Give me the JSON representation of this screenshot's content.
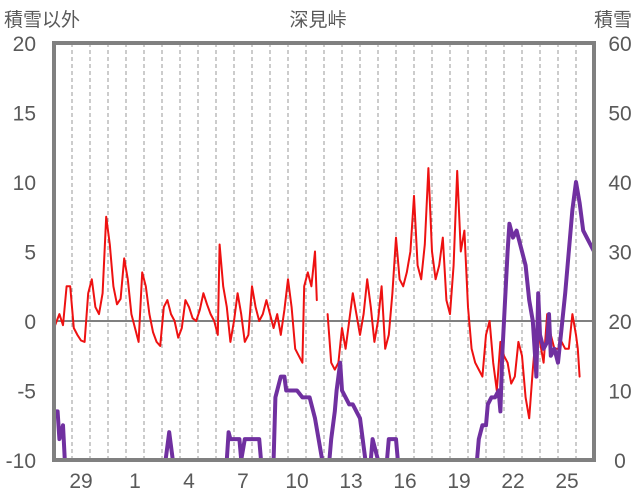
{
  "chart_data": {
    "type": "line",
    "title": "深見峠",
    "left_axis": {
      "label": "積雪以外",
      "ylim": [
        -10,
        20
      ],
      "ticks": [
        -10,
        -5,
        0,
        5,
        10,
        15,
        20
      ]
    },
    "right_axis": {
      "label": "積雪",
      "ylim": [
        0,
        60
      ],
      "ticks": [
        0,
        10,
        20,
        30,
        40,
        50,
        60
      ]
    },
    "x_ticks": [
      "29",
      "1",
      "4",
      "7",
      "10",
      "13",
      "16",
      "19",
      "22",
      "25"
    ],
    "x_day_range": [
      0,
      30
    ],
    "x_tick_days": [
      1.5,
      4.5,
      7.5,
      10.5,
      13.5,
      16.5,
      19.5,
      22.5,
      25.5,
      28.5
    ],
    "grid": "vertical dashed daily, solid zero line",
    "series": [
      {
        "axis": "left",
        "color": "#ee1111",
        "points": [
          [
            0.0,
            -0.5
          ],
          [
            0.3,
            0.5
          ],
          [
            0.5,
            -0.3
          ],
          [
            0.7,
            2.5
          ],
          [
            0.9,
            2.5
          ],
          [
            1.1,
            -0.5
          ],
          [
            1.3,
            -1.0
          ],
          [
            1.5,
            -1.4
          ],
          [
            1.7,
            -1.5
          ],
          [
            1.9,
            2.0
          ],
          [
            2.1,
            3.0
          ],
          [
            2.3,
            1.0
          ],
          [
            2.5,
            0.5
          ],
          [
            2.7,
            2.0
          ],
          [
            2.9,
            7.5
          ],
          [
            3.1,
            5.5
          ],
          [
            3.3,
            2.5
          ],
          [
            3.5,
            1.2
          ],
          [
            3.7,
            1.6
          ],
          [
            3.9,
            4.5
          ],
          [
            4.1,
            3.0
          ],
          [
            4.3,
            0.5
          ],
          [
            4.5,
            -0.5
          ],
          [
            4.7,
            -1.5
          ],
          [
            4.9,
            3.5
          ],
          [
            5.1,
            2.5
          ],
          [
            5.3,
            0.5
          ],
          [
            5.5,
            -0.8
          ],
          [
            5.7,
            -1.5
          ],
          [
            5.9,
            -1.8
          ],
          [
            6.1,
            1.0
          ],
          [
            6.3,
            1.5
          ],
          [
            6.5,
            0.5
          ],
          [
            6.7,
            0.0
          ],
          [
            6.9,
            -1.2
          ],
          [
            7.1,
            -0.5
          ],
          [
            7.3,
            1.5
          ],
          [
            7.5,
            1.0
          ],
          [
            7.7,
            0.2
          ],
          [
            7.9,
            0.0
          ],
          [
            8.1,
            0.8
          ],
          [
            8.3,
            2.0
          ],
          [
            8.5,
            1.2
          ],
          [
            8.7,
            0.5
          ],
          [
            8.9,
            0.0
          ],
          [
            9.1,
            -1.0
          ],
          [
            9.2,
            5.5
          ],
          [
            9.4,
            2.5
          ],
          [
            9.6,
            1.0
          ],
          [
            9.8,
            -1.5
          ],
          [
            10.0,
            0.0
          ],
          [
            10.2,
            2.0
          ],
          [
            10.4,
            0.5
          ],
          [
            10.6,
            -1.5
          ],
          [
            10.8,
            -1.0
          ],
          [
            11.0,
            2.5
          ],
          [
            11.2,
            1.0
          ],
          [
            11.4,
            0.0
          ],
          [
            11.6,
            0.5
          ],
          [
            11.8,
            1.5
          ],
          [
            12.0,
            0.5
          ],
          [
            12.2,
            -0.5
          ],
          [
            12.4,
            0.5
          ],
          [
            12.6,
            -1.0
          ],
          [
            12.8,
            0.8
          ],
          [
            13.0,
            3.0
          ],
          [
            13.2,
            1.0
          ],
          [
            13.4,
            -2.0
          ],
          [
            13.6,
            -2.5
          ],
          [
            13.8,
            -3.0
          ],
          [
            13.9,
            2.5
          ],
          [
            14.1,
            3.5
          ],
          [
            14.3,
            2.5
          ],
          [
            14.5,
            5.0
          ],
          [
            14.6,
            1.5
          ]
        ]
      },
      {
        "axis": "left",
        "color": "#ee1111",
        "points": [
          [
            15.2,
            0.5
          ],
          [
            15.4,
            -3.0
          ],
          [
            15.6,
            -3.5
          ],
          [
            15.8,
            -3.0
          ],
          [
            16.0,
            -0.5
          ],
          [
            16.2,
            -2.0
          ],
          [
            16.4,
            0.0
          ],
          [
            16.6,
            2.0
          ],
          [
            16.8,
            0.5
          ],
          [
            17.0,
            -1.0
          ],
          [
            17.2,
            0.5
          ],
          [
            17.4,
            3.0
          ],
          [
            17.6,
            1.0
          ],
          [
            17.8,
            -1.5
          ],
          [
            18.0,
            0.0
          ],
          [
            18.2,
            2.5
          ],
          [
            18.4,
            -2.0
          ],
          [
            18.6,
            -1.0
          ],
          [
            18.8,
            2.0
          ],
          [
            19.0,
            6.0
          ],
          [
            19.2,
            3.0
          ],
          [
            19.4,
            2.5
          ],
          [
            19.6,
            3.5
          ],
          [
            19.8,
            5.0
          ],
          [
            20.0,
            9.0
          ],
          [
            20.2,
            4.0
          ],
          [
            20.4,
            3.0
          ],
          [
            20.6,
            5.5
          ],
          [
            20.8,
            11.0
          ],
          [
            21.0,
            5.0
          ],
          [
            21.2,
            3.0
          ],
          [
            21.4,
            4.0
          ],
          [
            21.6,
            6.0
          ],
          [
            21.8,
            1.5
          ],
          [
            22.0,
            0.5
          ],
          [
            22.2,
            4.0
          ],
          [
            22.4,
            10.8
          ],
          [
            22.6,
            5.0
          ],
          [
            22.8,
            6.5
          ],
          [
            23.0,
            1.0
          ],
          [
            23.2,
            -2.0
          ],
          [
            23.4,
            -3.0
          ],
          [
            23.6,
            -3.5
          ],
          [
            23.8,
            -4.0
          ],
          [
            24.0,
            -1.0
          ],
          [
            24.2,
            0.0
          ],
          [
            24.4,
            -3.0
          ],
          [
            24.6,
            -5.0
          ],
          [
            24.8,
            -1.5
          ],
          [
            25.0,
            -2.5
          ],
          [
            25.2,
            -3.0
          ],
          [
            25.4,
            -4.5
          ],
          [
            25.6,
            -4.0
          ],
          [
            25.8,
            -1.5
          ],
          [
            26.0,
            -2.5
          ],
          [
            26.2,
            -5.5
          ],
          [
            26.4,
            -7.0
          ],
          [
            26.6,
            -3.5
          ],
          [
            26.8,
            -0.5
          ],
          [
            27.0,
            -1.5
          ],
          [
            27.2,
            -3.0
          ],
          [
            27.4,
            0.5
          ],
          [
            27.6,
            -1.0
          ],
          [
            27.8,
            -2.0
          ],
          [
            28.0,
            -2.0
          ],
          [
            28.2,
            -1.5
          ],
          [
            28.4,
            -2.0
          ],
          [
            28.6,
            -2.0
          ],
          [
            28.8,
            0.5
          ],
          [
            29.0,
            -1.0
          ],
          [
            29.1,
            -2.0
          ],
          [
            29.2,
            -4.0
          ]
        ]
      },
      {
        "axis": "right",
        "color": "#7030a0",
        "points": [
          [
            0.0,
            7
          ],
          [
            0.2,
            7
          ],
          [
            0.3,
            3
          ],
          [
            0.5,
            5
          ],
          [
            0.6,
            0
          ],
          [
            5.7,
            0
          ],
          [
            6.2,
            0
          ],
          [
            6.4,
            4
          ],
          [
            6.6,
            0
          ],
          [
            9.6,
            0
          ],
          [
            9.7,
            4
          ],
          [
            9.8,
            3
          ],
          [
            10.3,
            3
          ],
          [
            10.4,
            0
          ],
          [
            10.6,
            3
          ],
          [
            11.4,
            3
          ],
          [
            11.5,
            0
          ],
          [
            12.2,
            0
          ],
          [
            12.3,
            9
          ],
          [
            12.6,
            12
          ],
          [
            12.8,
            12
          ],
          [
            12.9,
            10
          ],
          [
            13.2,
            10
          ],
          [
            13.5,
            10
          ],
          [
            13.8,
            9
          ],
          [
            14.2,
            9
          ],
          [
            14.5,
            6
          ],
          [
            14.7,
            3
          ],
          [
            14.9,
            0
          ],
          [
            15.3,
            0
          ],
          [
            15.4,
            3
          ],
          [
            15.6,
            7
          ],
          [
            15.7,
            10
          ],
          [
            15.8,
            12
          ],
          [
            15.9,
            14
          ],
          [
            16.0,
            10
          ],
          [
            16.2,
            9
          ],
          [
            16.4,
            8
          ],
          [
            16.6,
            8
          ],
          [
            16.8,
            7
          ],
          [
            17.0,
            6
          ],
          [
            17.2,
            2
          ],
          [
            17.3,
            0
          ],
          [
            17.6,
            0
          ],
          [
            17.7,
            3
          ],
          [
            18.0,
            0
          ],
          [
            18.5,
            0
          ],
          [
            18.6,
            3
          ],
          [
            19.0,
            3
          ],
          [
            19.1,
            0
          ],
          [
            23.5,
            0
          ],
          [
            23.6,
            3
          ],
          [
            23.8,
            5
          ],
          [
            24.0,
            5
          ],
          [
            24.1,
            8
          ],
          [
            24.3,
            9
          ],
          [
            24.5,
            9
          ],
          [
            24.7,
            10
          ],
          [
            24.8,
            7
          ],
          [
            24.9,
            15
          ],
          [
            25.0,
            20
          ],
          [
            25.2,
            30
          ],
          [
            25.3,
            34
          ],
          [
            25.5,
            32
          ],
          [
            25.7,
            33
          ],
          [
            26.0,
            30
          ],
          [
            26.2,
            28
          ],
          [
            26.4,
            23
          ],
          [
            26.6,
            20
          ],
          [
            26.8,
            12
          ],
          [
            26.9,
            24
          ],
          [
            27.0,
            18
          ],
          [
            27.2,
            16
          ],
          [
            27.4,
            17
          ],
          [
            27.5,
            21
          ],
          [
            27.6,
            15
          ],
          [
            27.8,
            16
          ],
          [
            28.0,
            14
          ],
          [
            28.2,
            19
          ],
          [
            28.4,
            24
          ],
          [
            28.6,
            30
          ],
          [
            28.8,
            36
          ],
          [
            29.0,
            40
          ],
          [
            29.2,
            37
          ],
          [
            29.4,
            33
          ],
          [
            29.6,
            32
          ],
          [
            29.8,
            31
          ],
          [
            30.0,
            30
          ]
        ]
      }
    ]
  }
}
